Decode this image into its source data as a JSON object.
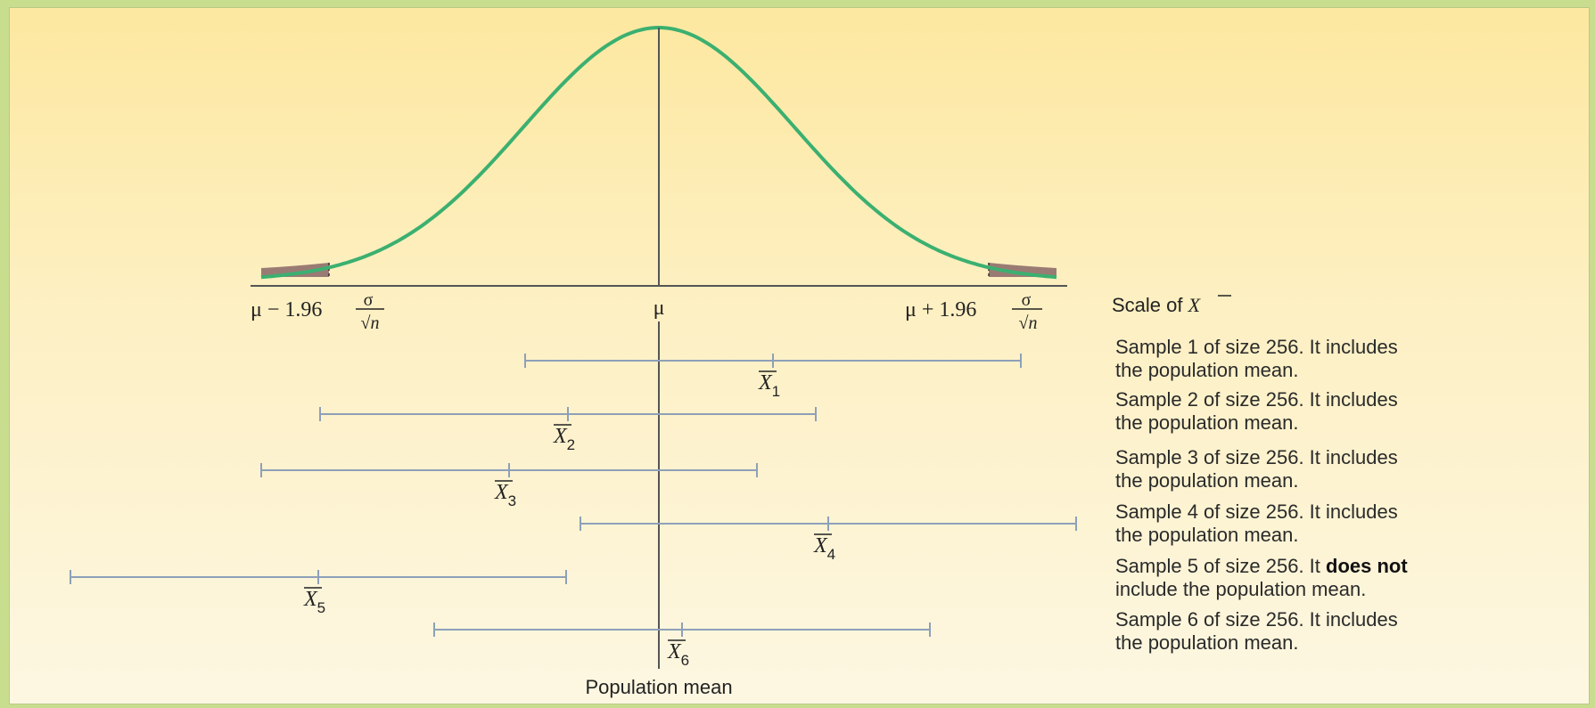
{
  "labels": {
    "left_bound_prefix": "μ − 1.96",
    "right_bound_prefix": "μ + 1.96",
    "sigma": "σ",
    "sqrt_n": "√n",
    "mu": "μ",
    "scale_label": "Scale of ",
    "xbar_symbol": "X",
    "population_mean": "Population mean"
  },
  "samples": [
    {
      "sub": "1",
      "line1": "Sample 1 of size 256. It includes",
      "line2": "the population mean.",
      "bold": "",
      "after": ""
    },
    {
      "sub": "2",
      "line1": "Sample 2 of size 256. It includes",
      "line2": "the population mean.",
      "bold": "",
      "after": ""
    },
    {
      "sub": "3",
      "line1": "Sample 3 of size 256. It includes",
      "line2": "the population mean.",
      "bold": "",
      "after": ""
    },
    {
      "sub": "4",
      "line1": "Sample 4 of size 256. It includes",
      "line2": "the population mean.",
      "bold": "",
      "after": ""
    },
    {
      "sub": "5",
      "line1": "Sample 5 of size 256. It ",
      "line2": "include the population mean.",
      "bold": "does not",
      "after": ""
    },
    {
      "sub": "6",
      "line1": "Sample 6 of size 256. It includes",
      "line2": "the population mean.",
      "bold": "",
      "after": ""
    }
  ],
  "colors": {
    "curve": "#3bb070",
    "tail_fill": "#9a7b74",
    "interval": "#8ea0b8",
    "axis": "#555555"
  }
}
